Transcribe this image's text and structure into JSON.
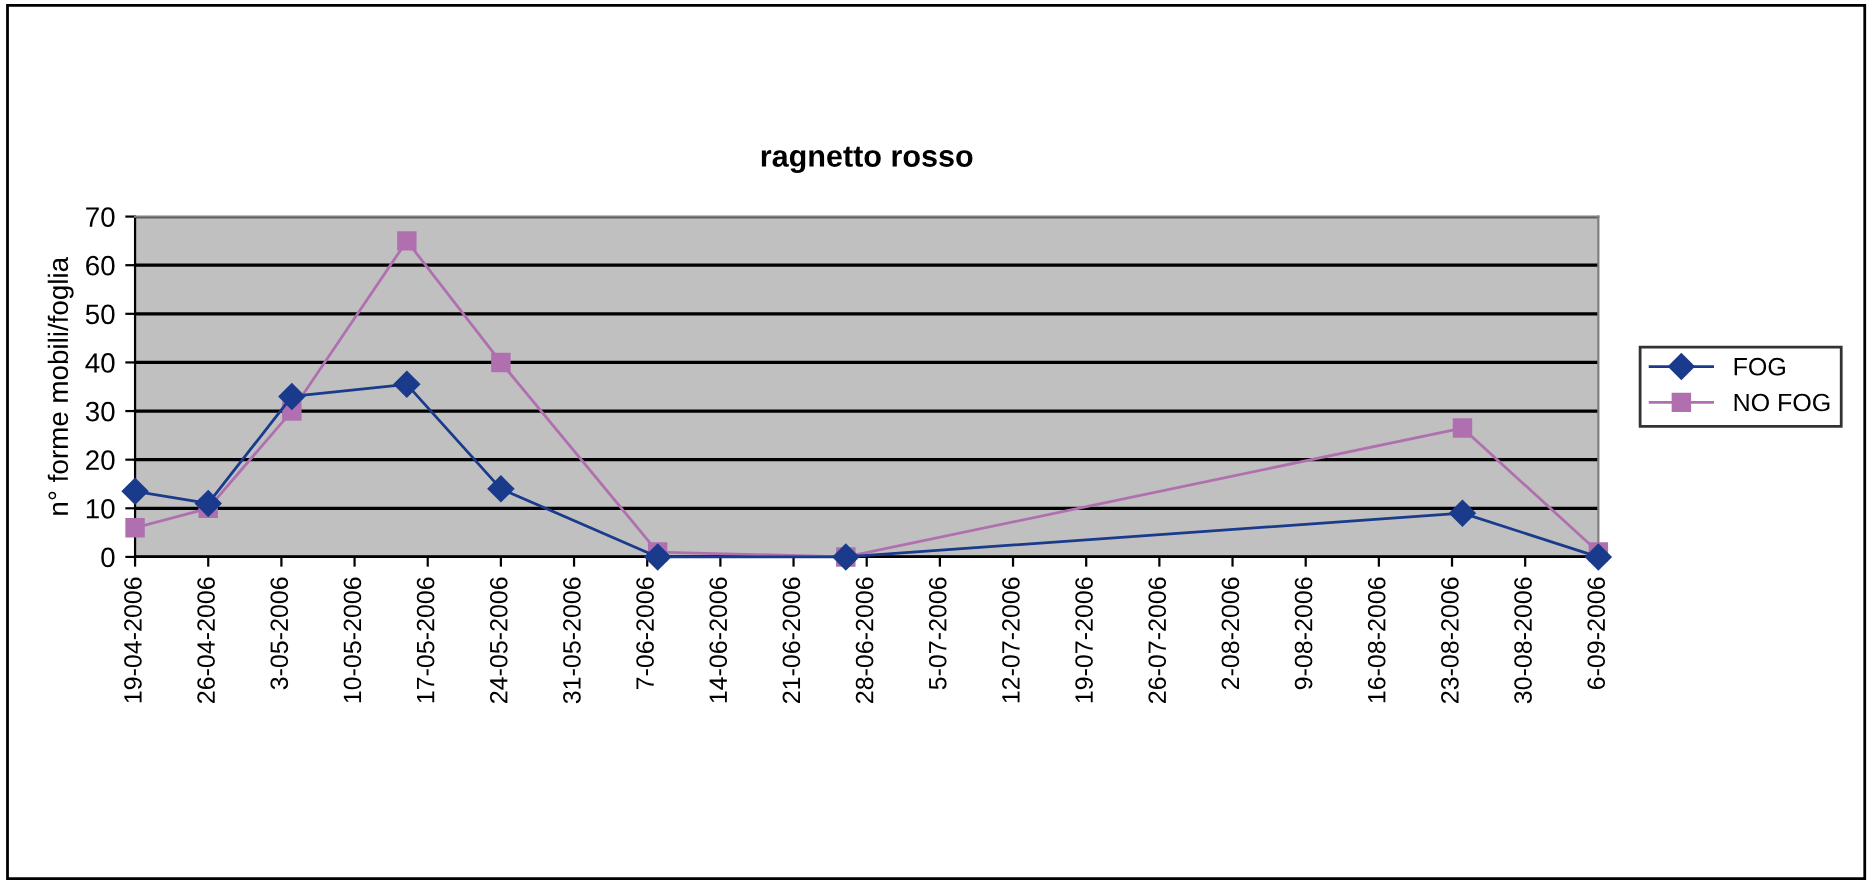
{
  "chart_data": {
    "type": "line",
    "title": "ragnetto rosso",
    "ylabel": "n° forme mobili/foglia",
    "xlim": [
      "2006-04-19",
      "2006-09-06"
    ],
    "xticks": [
      {
        "value": "2006-04-19",
        "label": "19-04-2006"
      },
      {
        "value": "2006-04-26",
        "label": "26-04-2006"
      },
      {
        "value": "2006-05-03",
        "label": "3-05-2006"
      },
      {
        "value": "2006-05-10",
        "label": "10-05-2006"
      },
      {
        "value": "2006-05-17",
        "label": "17-05-2006"
      },
      {
        "value": "2006-05-24",
        "label": "24-05-2006"
      },
      {
        "value": "2006-05-31",
        "label": "31-05-2006"
      },
      {
        "value": "2006-06-07",
        "label": "7-06-2006"
      },
      {
        "value": "2006-06-14",
        "label": "14-06-2006"
      },
      {
        "value": "2006-06-21",
        "label": "21-06-2006"
      },
      {
        "value": "2006-06-28",
        "label": "28-06-2006"
      },
      {
        "value": "2006-07-05",
        "label": "5-07-2006"
      },
      {
        "value": "2006-07-12",
        "label": "12-07-2006"
      },
      {
        "value": "2006-07-19",
        "label": "19-07-2006"
      },
      {
        "value": "2006-07-26",
        "label": "26-07-2006"
      },
      {
        "value": "2006-08-02",
        "label": "2-08-2006"
      },
      {
        "value": "2006-08-09",
        "label": "9-08-2006"
      },
      {
        "value": "2006-08-16",
        "label": "16-08-2006"
      },
      {
        "value": "2006-08-23",
        "label": "23-08-2006"
      },
      {
        "value": "2006-08-30",
        "label": "30-08-2006"
      },
      {
        "value": "2006-09-06",
        "label": "6-09-2006"
      }
    ],
    "ylim": [
      0,
      70
    ],
    "yticks": [
      0,
      10,
      20,
      30,
      40,
      50,
      60,
      70
    ],
    "grid": "y",
    "legend": "right",
    "x": [
      "2006-04-19",
      "2006-04-26",
      "2006-05-04",
      "2006-05-15",
      "2006-05-24",
      "2006-06-08",
      "2006-06-26",
      "2006-08-24",
      "2006-09-06"
    ],
    "series": [
      {
        "name": "FOG",
        "color": "#1a3a8c",
        "marker": "diamond",
        "values": [
          13.5,
          11,
          33,
          35.5,
          14,
          0,
          0,
          9,
          0
        ]
      },
      {
        "name": "NO FOG",
        "color": "#b070b0",
        "marker": "square",
        "values": [
          6,
          10,
          30,
          65,
          40,
          1,
          0,
          26.5,
          1
        ]
      }
    ]
  }
}
